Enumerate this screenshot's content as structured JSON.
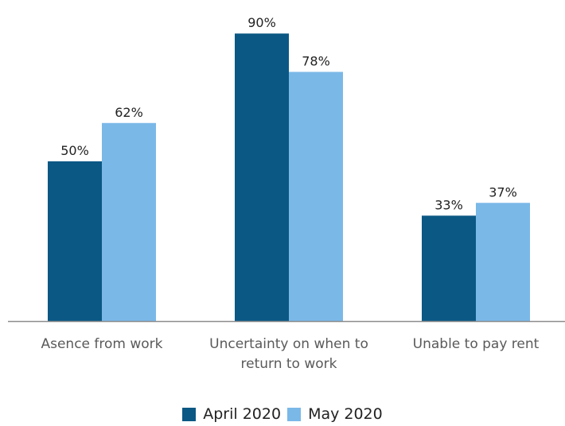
{
  "chart_data": {
    "type": "bar",
    "categories": [
      [
        "Asence from work"
      ],
      [
        "Uncertainty on when to",
        "return to work"
      ],
      [
        "Unable to pay rent"
      ]
    ],
    "series": [
      {
        "name": "April 2020",
        "values": [
          50,
          90,
          33
        ],
        "labels": [
          "50%",
          "90%",
          "33%"
        ],
        "color": "#0b5884"
      },
      {
        "name": "May 2020",
        "values": [
          62,
          78,
          37
        ],
        "labels": [
          "62%",
          "78%",
          "37%"
        ],
        "color": "#7ab8e8"
      }
    ],
    "ylim": [
      0,
      100
    ],
    "grid": false,
    "legend": "bottom",
    "baseline_color": "#8c8c8c"
  }
}
